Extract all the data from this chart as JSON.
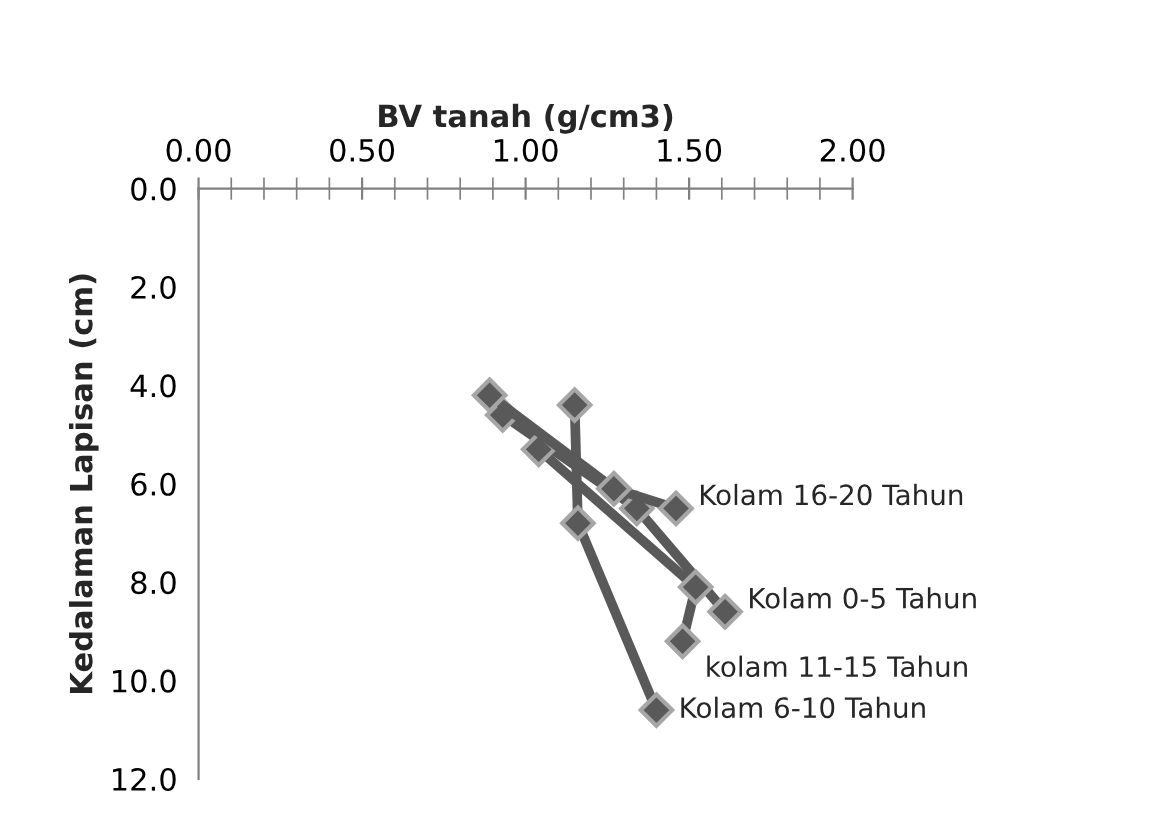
{
  "chart_data": {
    "type": "line",
    "xlabel": "BV tanah (g/cm3)",
    "ylabel": "Kedalaman Lapisan (cm)",
    "xlim": [
      0,
      2
    ],
    "xticks": [
      {
        "value": 0,
        "label": "0.00"
      },
      {
        "value": 0.5,
        "label": "0.50"
      },
      {
        "value": 1,
        "label": "1.00"
      },
      {
        "value": 1.5,
        "label": "1.50"
      },
      {
        "value": 2,
        "label": "2.00"
      }
    ],
    "ylim": [
      12,
      0
    ],
    "yticks": [
      {
        "value": 0,
        "label": "0.0"
      },
      {
        "value": 2,
        "label": "2.0"
      },
      {
        "value": 4,
        "label": "4.0"
      },
      {
        "value": 6,
        "label": "6.0"
      },
      {
        "value": 8,
        "label": "8.0"
      },
      {
        "value": 10,
        "label": "10.0"
      },
      {
        "value": 12,
        "label": "12.0"
      }
    ],
    "marker": "diamond",
    "grid": false,
    "legend": false,
    "series": [
      {
        "name": "Kolam 0-5 Tahun",
        "color": "#595959",
        "x": [
          0.93,
          1.34,
          1.61
        ],
        "values": [
          4.6,
          6.5,
          8.6
        ]
      },
      {
        "name": "Kolam 6-10 Tahun",
        "color": "#595959",
        "x": [
          1.15,
          1.16,
          1.4
        ],
        "values": [
          4.4,
          6.8,
          10.6
        ]
      },
      {
        "name": "kolam 11-15 Tahun",
        "color": "#595959",
        "x": [
          1.04,
          1.52,
          1.48
        ],
        "values": [
          5.3,
          8.1,
          9.2
        ]
      },
      {
        "name": "Kolam 16-20 Tahun",
        "color": "#595959",
        "x": [
          0.89,
          1.27,
          1.46
        ],
        "values": [
          4.2,
          6.1,
          6.5
        ]
      }
    ]
  }
}
